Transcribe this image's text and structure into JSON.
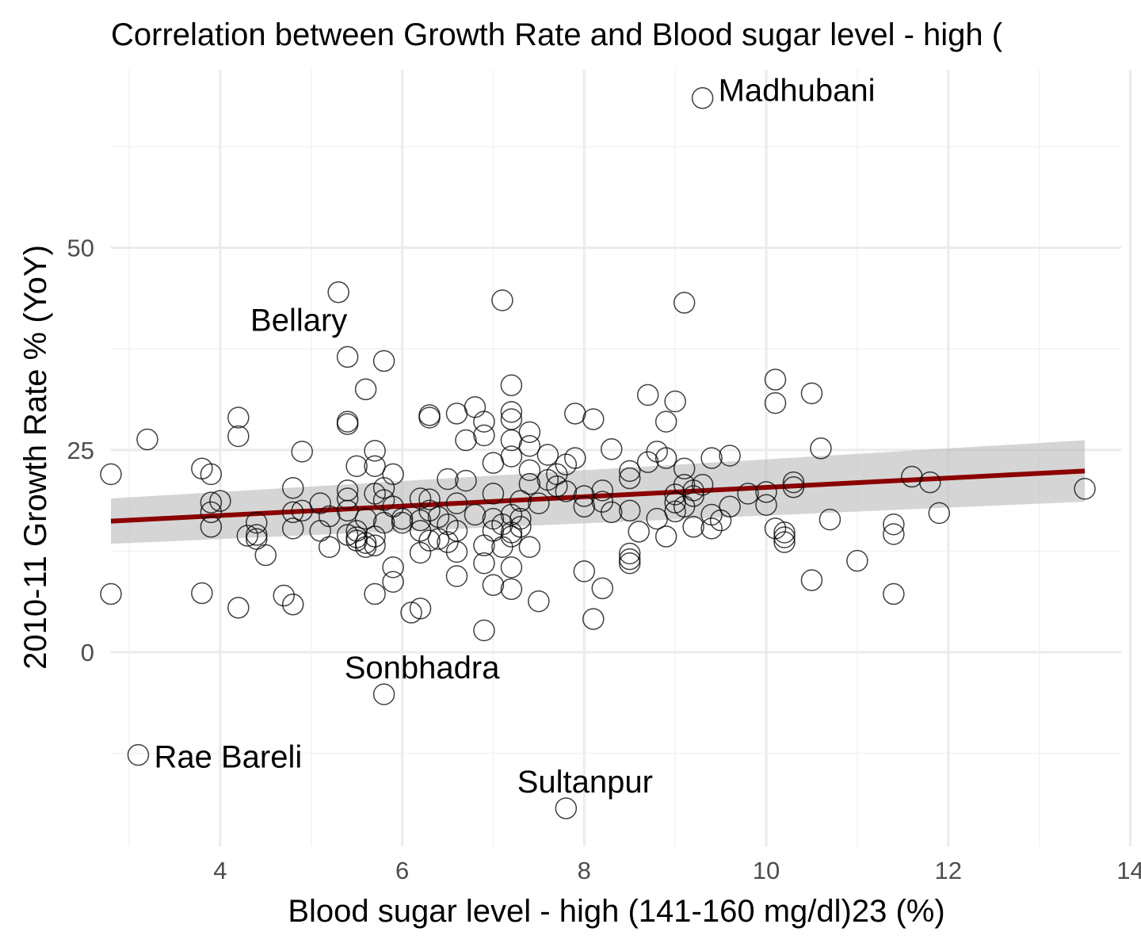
{
  "chart_data": {
    "type": "scatter",
    "title": "Correlation between Growth Rate and Blood sugar level - high (",
    "xlabel": "Blood sugar level - high (141-160 mg/dl)23 (%)",
    "ylabel": "2010-11 Growth Rate % (YoY)",
    "xlim": [
      2.8,
      13.9
    ],
    "ylim": [
      -24,
      72
    ],
    "x_ticks": [
      4,
      6,
      8,
      10,
      12,
      14
    ],
    "y_ticks": [
      0,
      25,
      50
    ],
    "grid": true,
    "trend": {
      "method": "linear",
      "x": [
        2.8,
        13.5
      ],
      "y": [
        16.2,
        22.4
      ],
      "ci_lower": [
        13.4,
        18.6
      ],
      "ci_upper": [
        19.0,
        26.2
      ],
      "color": "#8b0000",
      "band_color": "#bebebe"
    },
    "labels": [
      {
        "text": "Madhubani",
        "x": 9.3,
        "y": 68.5
      },
      {
        "text": "Bellary",
        "x": 5.3,
        "y": 44.5
      },
      {
        "text": "Sonbhadra",
        "x": 5.8,
        "y": -5.2
      },
      {
        "text": "Rae Bareli",
        "x": 3.1,
        "y": -12.7
      },
      {
        "text": "Sultanpur",
        "x": 7.8,
        "y": -19.3
      }
    ],
    "points": [
      [
        9.3,
        68.5
      ],
      [
        5.3,
        44.5
      ],
      [
        7.1,
        43.5
      ],
      [
        9.1,
        43.2
      ],
      [
        5.4,
        36.5
      ],
      [
        5.8,
        36.0
      ],
      [
        10.1,
        33.7
      ],
      [
        7.2,
        33.0
      ],
      [
        5.6,
        32.5
      ],
      [
        10.5,
        32.0
      ],
      [
        8.7,
        31.8
      ],
      [
        9.0,
        31.0
      ],
      [
        10.1,
        30.8
      ],
      [
        6.8,
        30.3
      ],
      [
        6.6,
        29.5
      ],
      [
        7.2,
        29.7
      ],
      [
        7.9,
        29.5
      ],
      [
        6.3,
        29.3
      ],
      [
        6.3,
        29.0
      ],
      [
        4.2,
        29.0
      ],
      [
        7.2,
        28.8
      ],
      [
        8.1,
        28.8
      ],
      [
        6.9,
        28.5
      ],
      [
        5.4,
        28.5
      ],
      [
        5.4,
        28.2
      ],
      [
        8.9,
        28.5
      ],
      [
        7.4,
        27.2
      ],
      [
        6.9,
        26.8
      ],
      [
        4.2,
        26.7
      ],
      [
        6.7,
        26.2
      ],
      [
        3.2,
        26.3
      ],
      [
        7.2,
        26.2
      ],
      [
        7.4,
        25.5
      ],
      [
        8.3,
        25.1
      ],
      [
        10.6,
        25.2
      ],
      [
        4.9,
        24.8
      ],
      [
        5.7,
        24.9
      ],
      [
        8.8,
        24.8
      ],
      [
        9.6,
        24.3
      ],
      [
        7.2,
        24.2
      ],
      [
        7.6,
        24.4
      ],
      [
        9.4,
        24.0
      ],
      [
        7.9,
        24.0
      ],
      [
        8.9,
        24.0
      ],
      [
        7.0,
        23.4
      ],
      [
        8.7,
        23.5
      ],
      [
        5.5,
        23.0
      ],
      [
        5.7,
        23.0
      ],
      [
        7.8,
        23.2
      ],
      [
        3.8,
        22.7
      ],
      [
        9.1,
        22.7
      ],
      [
        7.4,
        22.5
      ],
      [
        8.5,
        22.4
      ],
      [
        7.7,
        22.0
      ],
      [
        3.9,
        22.0
      ],
      [
        2.8,
        22.0
      ],
      [
        5.9,
        22.0
      ],
      [
        11.6,
        21.7
      ],
      [
        8.5,
        21.5
      ],
      [
        7.6,
        21.3
      ],
      [
        6.5,
        21.4
      ],
      [
        6.7,
        21.2
      ],
      [
        11.8,
        21.0
      ],
      [
        10.3,
        21.0
      ],
      [
        7.4,
        20.8
      ],
      [
        7.7,
        20.5
      ],
      [
        9.1,
        20.7
      ],
      [
        9.3,
        20.7
      ],
      [
        10.3,
        20.4
      ],
      [
        5.8,
        20.3
      ],
      [
        4.8,
        20.3
      ],
      [
        5.4,
        20.0
      ],
      [
        9.2,
        20.0
      ],
      [
        8.2,
        20.0
      ],
      [
        7.8,
        19.9
      ],
      [
        10.0,
        19.8
      ],
      [
        9.8,
        19.6
      ],
      [
        5.7,
        19.6
      ],
      [
        7.0,
        19.6
      ],
      [
        9.0,
        19.5
      ],
      [
        9.2,
        19.3
      ],
      [
        8.0,
        19.3
      ],
      [
        5.4,
        19.0
      ],
      [
        6.2,
        19.0
      ],
      [
        5.8,
        18.8
      ],
      [
        6.3,
        18.9
      ],
      [
        7.3,
        18.7
      ],
      [
        8.2,
        18.6
      ],
      [
        9.0,
        18.5
      ],
      [
        10.0,
        18.2
      ],
      [
        3.9,
        18.5
      ],
      [
        4.0,
        18.7
      ],
      [
        5.1,
        18.4
      ],
      [
        6.6,
        18.4
      ],
      [
        7.5,
        18.4
      ],
      [
        8.0,
        18.0
      ],
      [
        5.9,
        18.0
      ],
      [
        9.1,
        18.0
      ],
      [
        9.6,
        18.0
      ],
      [
        3.9,
        17.3
      ],
      [
        4.8,
        17.3
      ],
      [
        4.9,
        17.5
      ],
      [
        5.4,
        17.5
      ],
      [
        6.3,
        17.5
      ],
      [
        6.8,
        17.0
      ],
      [
        7.2,
        17.0
      ],
      [
        8.3,
        17.3
      ],
      [
        8.5,
        17.5
      ],
      [
        9.0,
        17.4
      ],
      [
        9.4,
        17.0
      ],
      [
        11.9,
        17.2
      ],
      [
        5.2,
        16.8
      ],
      [
        5.6,
        16.5
      ],
      [
        6.0,
        16.5
      ],
      [
        6.2,
        16.3
      ],
      [
        6.4,
        16.7
      ],
      [
        7.0,
        16.5
      ],
      [
        7.3,
        16.5
      ],
      [
        8.8,
        16.5
      ],
      [
        9.5,
        16.3
      ],
      [
        10.7,
        16.4
      ],
      [
        4.4,
        16.0
      ],
      [
        5.8,
        16.0
      ],
      [
        6.0,
        16.0
      ],
      [
        6.5,
        15.8
      ],
      [
        7.1,
        15.8
      ],
      [
        7.3,
        15.5
      ],
      [
        9.2,
        15.5
      ],
      [
        9.4,
        15.3
      ],
      [
        10.1,
        15.3
      ],
      [
        11.4,
        15.8
      ],
      [
        3.9,
        15.5
      ],
      [
        4.8,
        15.3
      ],
      [
        5.1,
        15.0
      ],
      [
        5.5,
        15.0
      ],
      [
        6.2,
        15.0
      ],
      [
        6.6,
        15.0
      ],
      [
        7.0,
        15.0
      ],
      [
        7.2,
        14.8
      ],
      [
        8.6,
        14.9
      ],
      [
        10.2,
        14.8
      ],
      [
        4.4,
        14.5
      ],
      [
        4.3,
        14.4
      ],
      [
        5.4,
        14.5
      ],
      [
        5.5,
        14.2
      ],
      [
        5.7,
        14.3
      ],
      [
        6.4,
        14.0
      ],
      [
        7.2,
        14.3
      ],
      [
        8.9,
        14.3
      ],
      [
        10.2,
        14.2
      ],
      [
        11.4,
        14.6
      ],
      [
        4.4,
        14.0
      ],
      [
        5.5,
        13.8
      ],
      [
        5.6,
        13.5
      ],
      [
        6.3,
        13.8
      ],
      [
        6.5,
        13.6
      ],
      [
        5.2,
        13.0
      ],
      [
        5.6,
        13.0
      ],
      [
        5.7,
        13.2
      ],
      [
        6.9,
        13.2
      ],
      [
        7.1,
        13.0
      ],
      [
        7.4,
        13.0
      ],
      [
        10.2,
        13.6
      ],
      [
        4.5,
        12.0
      ],
      [
        6.2,
        12.3
      ],
      [
        6.6,
        12.4
      ],
      [
        8.5,
        12.2
      ],
      [
        8.5,
        11.5
      ],
      [
        8.5,
        11.0
      ],
      [
        11.0,
        11.3
      ],
      [
        6.9,
        11.0
      ],
      [
        5.9,
        10.5
      ],
      [
        7.2,
        10.5
      ],
      [
        8.0,
        10.0
      ],
      [
        6.6,
        9.4
      ],
      [
        5.9,
        8.7
      ],
      [
        10.5,
        8.9
      ],
      [
        7.0,
        8.3
      ],
      [
        7.2,
        7.8
      ],
      [
        8.2,
        7.9
      ],
      [
        2.8,
        7.2
      ],
      [
        3.8,
        7.3
      ],
      [
        4.7,
        7.0
      ],
      [
        5.7,
        7.2
      ],
      [
        11.4,
        7.2
      ],
      [
        4.8,
        5.9
      ],
      [
        7.5,
        6.3
      ],
      [
        4.2,
        5.5
      ],
      [
        6.2,
        5.4
      ],
      [
        6.1,
        4.9
      ],
      [
        8.1,
        4.1
      ],
      [
        6.9,
        2.7
      ],
      [
        5.8,
        -5.2
      ],
      [
        3.1,
        -12.7
      ],
      [
        7.8,
        -19.3
      ],
      [
        13.5,
        20.2
      ]
    ]
  }
}
